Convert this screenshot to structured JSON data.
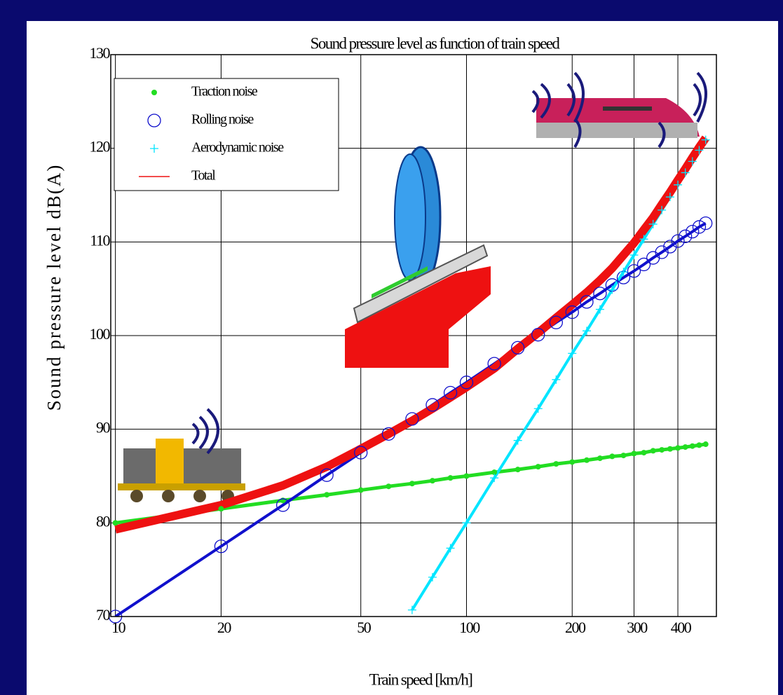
{
  "chart_data": {
    "type": "line",
    "title": "Sound pressure level as function of train speed",
    "x_label": "Train speed [km/h]",
    "y_label": "Sound pressure level dB(A)",
    "x_scale": "log",
    "xlim": [
      9.7,
      515
    ],
    "xticks": [
      10,
      20,
      50,
      100,
      200,
      300,
      400
    ],
    "ylim": [
      70,
      130
    ],
    "yticks": [
      70,
      80,
      90,
      100,
      110,
      120,
      130
    ],
    "grid": true,
    "legend": "upper left",
    "x": [
      10,
      20,
      30,
      40,
      50,
      60,
      70,
      80,
      90,
      100,
      120,
      140,
      160,
      180,
      200,
      220,
      240,
      260,
      280,
      300,
      320,
      340,
      360,
      380,
      400,
      420,
      440,
      460,
      480
    ],
    "series": [
      {
        "name": "Traction noise",
        "color": "#22dd22",
        "marker": "dot",
        "line_width": 5,
        "values": [
          80,
          81.5,
          82.4,
          83.0,
          83.5,
          83.9,
          84.2,
          84.5,
          84.8,
          85,
          85.4,
          85.7,
          86.0,
          86.3,
          86.5,
          86.7,
          86.9,
          87.1,
          87.2,
          87.4,
          87.5,
          87.7,
          87.8,
          87.9,
          88.0,
          88.1,
          88.2,
          88.3,
          88.4
        ]
      },
      {
        "name": "Rolling noise",
        "color": "#1010cc",
        "marker": "circle",
        "line_width": 4,
        "values": [
          70,
          77.5,
          81.9,
          85.1,
          87.5,
          89.5,
          91.1,
          92.6,
          93.9,
          95,
          97.0,
          98.7,
          100.1,
          101.4,
          102.5,
          103.6,
          104.5,
          105.4,
          106.2,
          106.9,
          107.6,
          108.3,
          108.9,
          109.5,
          110.1,
          110.6,
          111.1,
          111.6,
          112.0
        ]
      },
      {
        "name": "Aerodynamic noise",
        "color": "#00e5ff",
        "marker": "plus",
        "line_width": 4,
        "values": [
          null,
          null,
          null,
          null,
          null,
          null,
          70.7,
          74.2,
          77.3,
          80,
          84.8,
          88.8,
          92.2,
          95.3,
          98.1,
          100.5,
          102.8,
          104.9,
          106.8,
          108.6,
          110.3,
          111.9,
          113.4,
          114.8,
          116.1,
          117.4,
          118.6,
          119.8,
          120.9
        ]
      },
      {
        "name": "Total",
        "color": "#ee1111",
        "marker": "none",
        "line_width": 12,
        "values": [
          79.3,
          81.9,
          84.0,
          86.0,
          87.9,
          89.5,
          90.9,
          92.2,
          93.4,
          94.5,
          96.5,
          98.6,
          100.3,
          101.9,
          103.3,
          104.6,
          105.9,
          107.2,
          108.6,
          109.9,
          111.3,
          112.6,
          114.0,
          115.3,
          116.6,
          117.8,
          119.0,
          120.1,
          121.1
        ]
      }
    ]
  }
}
